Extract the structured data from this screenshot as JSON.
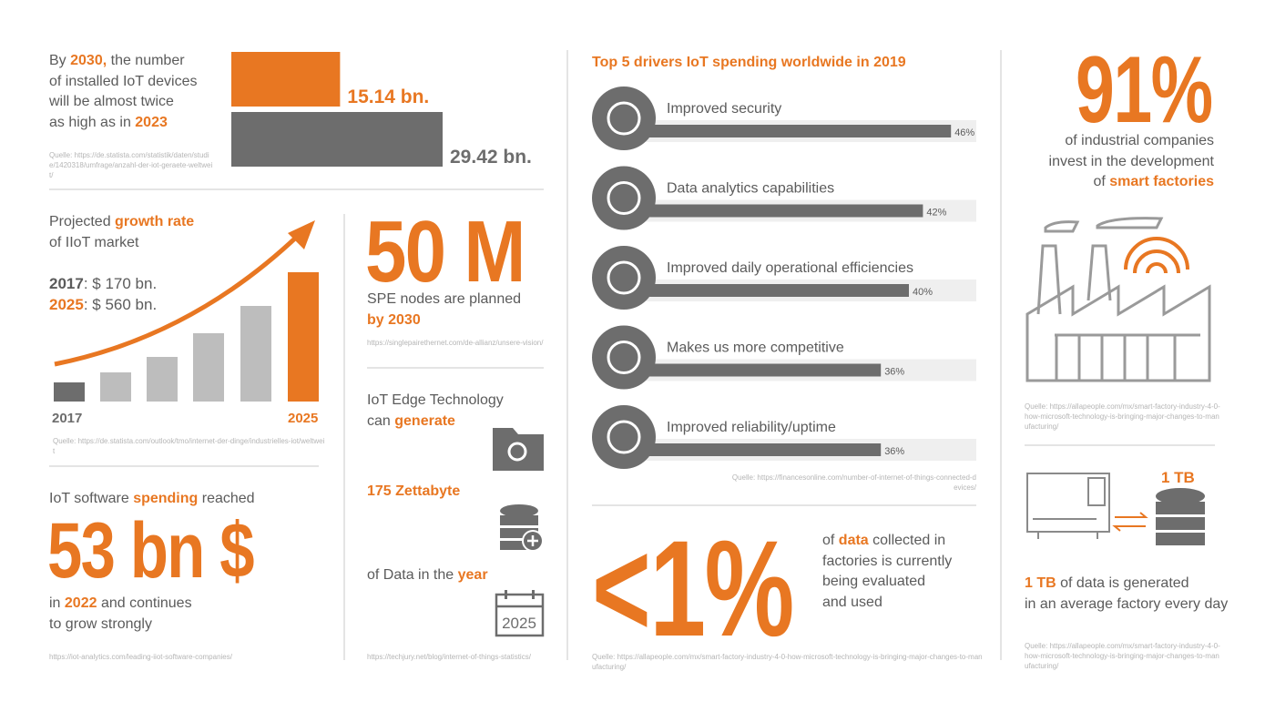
{
  "chart_data": [
    {
      "type": "hbar",
      "values": [
        15.14,
        29.42
      ],
      "value_labels": [
        "15.14 bn.",
        "29.42 bn."
      ],
      "colors": [
        "#e87722",
        "#6d6d6d"
      ]
    },
    {
      "type": "driverbar",
      "title": "Top 5 drivers IoT spending worldwide in 2019",
      "categories": [
        "Improved security",
        "Data analytics capabilities",
        "Improved daily operational efficiencies",
        "Makes us more competitive",
        "Improved reliability/uptime"
      ],
      "values": [
        46,
        42,
        40,
        36,
        36
      ],
      "value_labels": [
        "46%",
        "42%",
        "40%",
        "36%",
        "36%"
      ],
      "color": "#6d6d6d",
      "source": "Quelle: https://financesonline.com/number-of-internet-of-things-connected-devices/"
    }
  ],
  "devices": {
    "runs": [
      "By ",
      "2030,",
      " the number",
      "of installed IoT devices",
      "will be almost twice",
      "as high as in ",
      "2023"
    ],
    "source": "Quelle: https://de.statista.com/statistik/daten/studie/1420318/umfrage/anzahl-der-iot-geraete-weltweit/"
  },
  "growth": {
    "runs": [
      "Projected ",
      "growth rate",
      "of IIoT market"
    ],
    "year_1": "2017",
    "value_1": ": $ 170 bn.",
    "year_2": "2025",
    "value_2": ": $ 560 bn.",
    "axis_start": "2017",
    "axis_end": "2025",
    "source": "Quelle: https://de.statista.com/outlook/tmo/internet-der-dinge/industrielles-iot/weltweit"
  },
  "spending": {
    "runs": [
      "IoT software ",
      "spending",
      " reached"
    ],
    "big": "53 bn $",
    "after": [
      "in ",
      "2022",
      " and continues",
      "to grow strongly"
    ],
    "source": "https://iot-analytics.com/leading-iiot-software-companies/"
  },
  "spe": {
    "big": "50 M",
    "line_1": "SPE nodes are planned",
    "line_2": "by 2030",
    "source": "https://singlepairethernet.com/de-allianz/unsere-vision/"
  },
  "edge": {
    "runs": [
      "IoT Edge Technology",
      "can ",
      "generate"
    ],
    "amount": "175 Zettabyte",
    "tail": [
      "of Data in the ",
      "year"
    ],
    "calendar": "2025",
    "source": "https://techjury.net/blog/internet-of-things-statistics/"
  },
  "data_used": {
    "big": "<1%",
    "runs": [
      "of ",
      "data",
      " collected in",
      "factories is currently",
      "being evaluated",
      "and used"
    ],
    "source": "Quelle: https://allapeople.com/mx/smart-factory-industry-4-0-how-microsoft-technology-is-bringing-major-changes-to-manufacturing/"
  },
  "smart": {
    "big": "91%",
    "runs": [
      "of industrial companies",
      "invest in the development",
      "of ",
      "smart factories"
    ],
    "source": "Quelle: https://allapeople.com/mx/smart-factory-industry-4-0-how-microsoft-technology-is-bringing-major-changes-to-manufacturing/"
  },
  "terabyte": {
    "icon_label": "1 TB",
    "runs": [
      "1 TB",
      " of data is generated",
      "in an average factory every day"
    ],
    "source": "Quelle: https://allapeople.com/mx/smart-factory-industry-4-0-how-microsoft-technology-is-bringing-major-changes-to-manufacturing/"
  }
}
